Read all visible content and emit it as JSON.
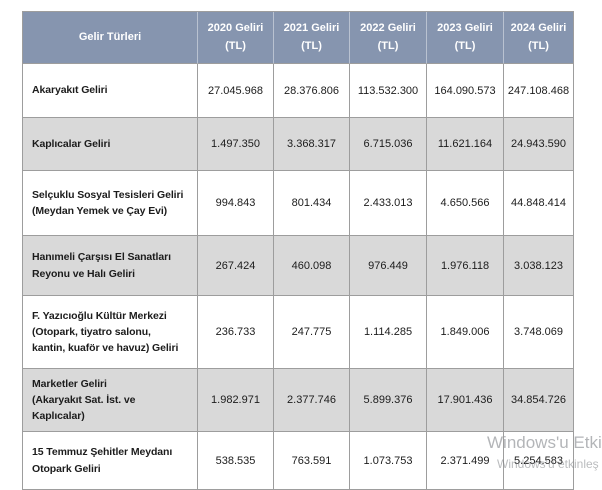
{
  "colors": {
    "header_bg": "#8695AF",
    "header_text": "#FFFFFF",
    "row_alt_bg": "#D9D9D9",
    "border": "#9D9D9D",
    "watermark": "#75797E"
  },
  "watermark": {
    "line1": "Windows'u Etki",
    "line2": "Windows'u etkinleş"
  },
  "table": {
    "header": {
      "row_label": "Gelir Türleri",
      "year_columns": [
        "2020 Geliri\n(TL)",
        "2021 Geliri\n(TL)",
        "2022 Geliri\n(TL)",
        "2023 Geliri\n(TL)",
        "2024 Geliri\n(TL)"
      ]
    },
    "rows": [
      {
        "label": "Akaryakıt Geliri",
        "values": [
          "27.045.968",
          "28.376.806",
          "113.532.300",
          "164.090.573",
          "247.108.468"
        ]
      },
      {
        "label": "Kaplıcalar Geliri",
        "values": [
          "1.497.350",
          "3.368.317",
          "6.715.036",
          "11.621.164",
          "24.943.590"
        ]
      },
      {
        "label": "Selçuklu Sosyal Tesisleri Geliri\n(Meydan Yemek ve Çay Evi)",
        "values": [
          "994.843",
          "801.434",
          "2.433.013",
          "4.650.566",
          "44.848.414"
        ]
      },
      {
        "label": "Hanımeli Çarşısı El Sanatları\nReyonu ve Halı Geliri",
        "values": [
          "267.424",
          "460.098",
          "976.449",
          "1.976.118",
          "3.038.123"
        ]
      },
      {
        "label": "F. Yazıcıoğlu Kültür Merkezi\n(Otopark, tiyatro salonu,\nkantin, kuaför ve havuz) Geliri",
        "values": [
          "236.733",
          "247.775",
          "1.114.285",
          "1.849.006",
          "3.748.069"
        ]
      },
      {
        "label": "Marketler Geliri\n(Akaryakıt Sat. İst. ve\nKaplıcalar)",
        "values": [
          "1.982.971",
          "2.377.746",
          "5.899.376",
          "17.901.436",
          "34.854.726"
        ]
      },
      {
        "label": "15 Temmuz Şehitler Meydanı\nOtopark Geliri",
        "values": [
          "538.535",
          "763.591",
          "1.073.753",
          "2.371.499",
          "5.254.583"
        ]
      }
    ]
  },
  "chart_data": {
    "type": "table",
    "title": "Gelir Türleri",
    "categories": [
      "2020 Geliri (TL)",
      "2021 Geliri (TL)",
      "2022 Geliri (TL)",
      "2023 Geliri (TL)",
      "2024 Geliri (TL)"
    ],
    "series": [
      {
        "name": "Akaryakıt Geliri",
        "values": [
          27045968,
          28376806,
          113532300,
          164090573,
          247108468
        ]
      },
      {
        "name": "Kaplıcalar Geliri",
        "values": [
          1497350,
          3368317,
          6715036,
          11621164,
          24943590
        ]
      },
      {
        "name": "Selçuklu Sosyal Tesisleri Geliri (Meydan Yemek ve Çay Evi)",
        "values": [
          994843,
          801434,
          2433013,
          4650566,
          44848414
        ]
      },
      {
        "name": "Hanımeli Çarşısı El Sanatları Reyonu ve Halı Geliri",
        "values": [
          267424,
          460098,
          976449,
          1976118,
          3038123
        ]
      },
      {
        "name": "F. Yazıcıoğlu Kültür Merkezi (Otopark, tiyatro salonu, kantin, kuaför ve havuz) Geliri",
        "values": [
          236733,
          247775,
          1114285,
          1849006,
          3748069
        ]
      },
      {
        "name": "Marketler Geliri (Akaryakıt Sat. İst. ve Kaplıcalar)",
        "values": [
          1982971,
          2377746,
          5899376,
          17901436,
          34854726
        ]
      },
      {
        "name": "15 Temmuz Şehitler Meydanı Otopark Geliri",
        "values": [
          538535,
          763591,
          1073753,
          2371499,
          5254583
        ]
      }
    ]
  }
}
